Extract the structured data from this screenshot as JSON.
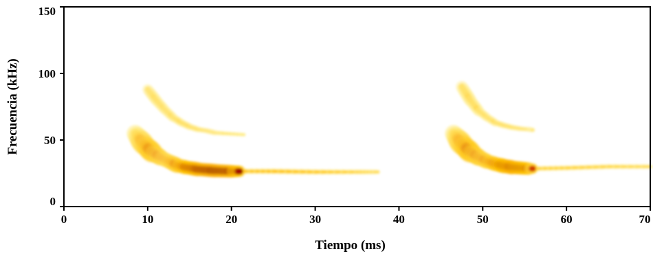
{
  "chart_data": {
    "type": "heatmap",
    "subtype": "spectrogram",
    "title": "",
    "xlabel": "Tiempo (ms)",
    "ylabel": "Frecuencia (kHz)",
    "xlim": [
      0,
      70
    ],
    "ylim": [
      0,
      150
    ],
    "xticks": [
      0,
      10,
      20,
      30,
      40,
      50,
      60,
      70
    ],
    "yticks": [
      0,
      50,
      100,
      150
    ],
    "grid": false,
    "colormap": [
      "#fffbe0",
      "#ffe97a",
      "#ffc000",
      "#ee6a00",
      "#b81800",
      "#6a0000"
    ],
    "calls": [
      {
        "label": "pulse-1",
        "fundamental": {
          "t": [
            8.5,
            9.5,
            10.5,
            11.5,
            12.5,
            13.5,
            14.5,
            16,
            18,
            20,
            21
          ],
          "f": [
            55,
            47,
            41,
            37,
            34,
            31,
            29.5,
            28,
            27,
            26.5,
            26.5
          ],
          "intensity": [
            0.3,
            0.6,
            0.75,
            0.65,
            0.6,
            0.72,
            0.85,
            0.95,
            1.0,
            0.95,
            0.85
          ]
        },
        "harmonic": {
          "t": [
            10,
            11,
            12,
            13,
            14,
            15,
            16,
            17,
            18,
            19,
            21.5
          ],
          "f": [
            88,
            80,
            73,
            67,
            63,
            60,
            58,
            57,
            55.5,
            55,
            54
          ],
          "intensity": [
            0.28,
            0.32,
            0.3,
            0.3,
            0.32,
            0.3,
            0.28,
            0.26,
            0.24,
            0.22,
            0.18
          ]
        },
        "tail": {
          "t": [
            21,
            25,
            30,
            35,
            37.5
          ],
          "f": [
            26.5,
            26.5,
            26,
            26,
            26
          ],
          "intensity": [
            0.35,
            0.38,
            0.35,
            0.3,
            0.25
          ]
        }
      },
      {
        "label": "pulse-2",
        "fundamental": {
          "t": [
            46.5,
            47.5,
            48.5,
            49.5,
            50.5,
            51.5,
            52.5,
            53.5,
            54.5,
            55.5,
            56
          ],
          "f": [
            55,
            47,
            41,
            37,
            34,
            32,
            30.5,
            29.5,
            29,
            28.5,
            28.5
          ],
          "intensity": [
            0.3,
            0.65,
            0.78,
            0.7,
            0.68,
            0.78,
            0.9,
            0.95,
            0.92,
            0.85,
            0.7
          ]
        },
        "harmonic": {
          "t": [
            47.5,
            48.5,
            49.5,
            50.5,
            51.5,
            52.5,
            53.5,
            54.5,
            55.5,
            56
          ],
          "f": [
            90,
            80,
            72,
            67,
            63,
            61,
            59.5,
            58.5,
            58,
            57.5
          ],
          "intensity": [
            0.3,
            0.34,
            0.32,
            0.3,
            0.3,
            0.3,
            0.28,
            0.26,
            0.24,
            0.2
          ]
        },
        "tail": {
          "t": [
            56,
            60,
            65,
            70
          ],
          "f": [
            28.5,
            29,
            30,
            30
          ],
          "intensity": [
            0.3,
            0.3,
            0.28,
            0.25
          ]
        }
      }
    ]
  }
}
